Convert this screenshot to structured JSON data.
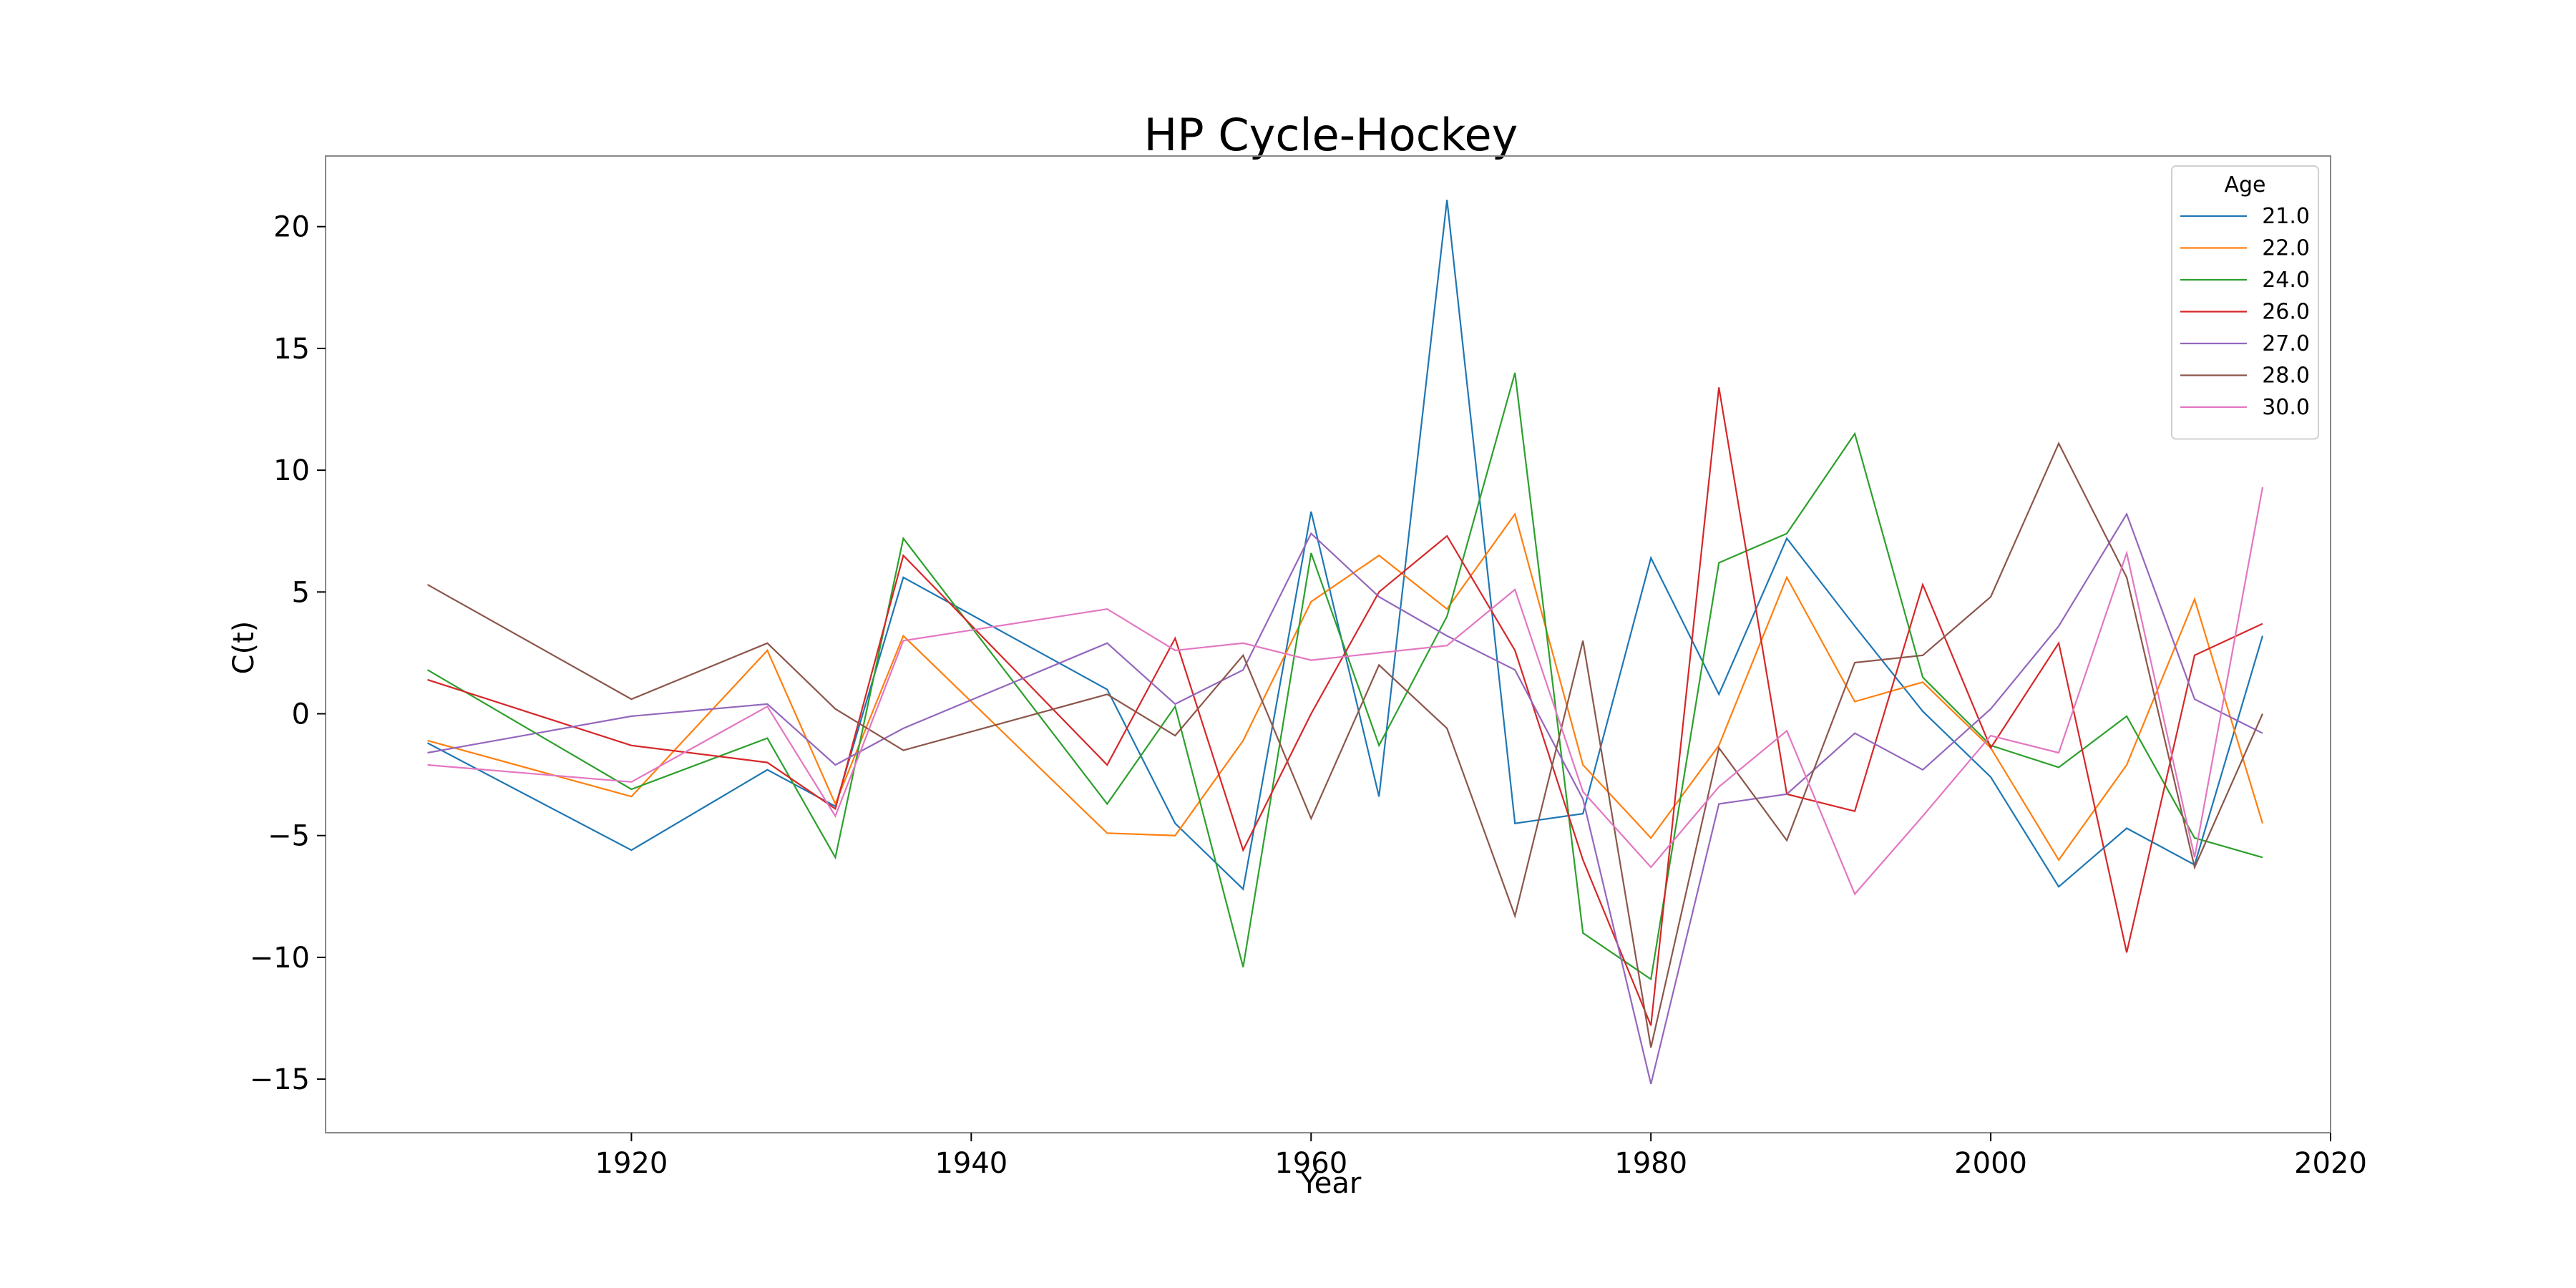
{
  "chart_data": {
    "type": "line",
    "title": "HP Cycle-Hockey",
    "xlabel": "Year",
    "ylabel": "C(t)",
    "xlim": [
      1902,
      2020
    ],
    "ylim": [
      -17.2,
      22.9
    ],
    "xticks": [
      1920,
      1940,
      1960,
      1980,
      2000,
      2020
    ],
    "yticks": [
      -15,
      -10,
      -5,
      0,
      5,
      10,
      15,
      20
    ],
    "grid": false,
    "legend": {
      "title": "Age",
      "position": "top-right"
    },
    "x": [
      1908,
      1920,
      1928,
      1932,
      1936,
      1948,
      1952,
      1956,
      1960,
      1964,
      1968,
      1972,
      1976,
      1980,
      1984,
      1988,
      1992,
      1996,
      2000,
      2004,
      2008,
      2012,
      2016
    ],
    "series": [
      {
        "name": "21.0",
        "color": "#1f77b4",
        "values": [
          -1.2,
          -5.6,
          -2.3,
          -3.8,
          5.6,
          1.0,
          -4.5,
          -7.2,
          8.3,
          -3.4,
          21.1,
          -4.5,
          -4.1,
          6.4,
          0.8,
          7.2,
          3.6,
          0.1,
          -2.6,
          -7.1,
          -4.7,
          -6.2,
          3.2
        ]
      },
      {
        "name": "22.0",
        "color": "#ff7f0e",
        "values": [
          -1.1,
          -3.4,
          2.6,
          -3.7,
          3.2,
          -4.9,
          -5.0,
          -1.1,
          4.6,
          6.5,
          4.3,
          8.2,
          -2.1,
          -5.1,
          -1.3,
          5.6,
          0.5,
          1.3,
          -1.4,
          -6.0,
          -2.1,
          4.7,
          -4.5
        ]
      },
      {
        "name": "24.0",
        "color": "#2ca02c",
        "values": [
          1.8,
          -3.1,
          -1.0,
          -5.9,
          7.2,
          -3.7,
          0.3,
          -10.4,
          6.6,
          -1.3,
          4.0,
          14.0,
          -9.0,
          -10.9,
          6.2,
          7.4,
          11.5,
          1.5,
          -1.3,
          -2.2,
          -0.1,
          -5.1,
          -5.9
        ]
      },
      {
        "name": "26.0",
        "color": "#d62728",
        "values": [
          1.4,
          -1.3,
          -2.0,
          -3.9,
          6.5,
          -2.1,
          3.1,
          -5.6,
          0.0,
          5.0,
          7.3,
          2.6,
          -6.0,
          -12.8,
          13.4,
          -3.3,
          -4.0,
          5.3,
          -1.4,
          2.9,
          -9.8,
          2.4,
          3.7
        ]
      },
      {
        "name": "27.0",
        "color": "#9467bd",
        "values": [
          -1.6,
          -0.1,
          0.4,
          -2.1,
          -0.6,
          2.9,
          0.4,
          1.8,
          7.4,
          4.8,
          3.2,
          1.8,
          -3.5,
          -15.2,
          -3.7,
          -3.3,
          -0.8,
          -2.3,
          0.2,
          3.6,
          8.2,
          0.6,
          -0.8
        ]
      },
      {
        "name": "28.0",
        "color": "#8c564b",
        "values": [
          5.3,
          0.6,
          2.9,
          0.2,
          -1.5,
          0.8,
          -0.9,
          2.4,
          -4.3,
          2.0,
          -0.6,
          -8.3,
          3.0,
          -13.7,
          -1.4,
          -5.2,
          2.1,
          2.4,
          4.8,
          11.1,
          5.6,
          -6.3,
          0.0
        ]
      },
      {
        "name": "30.0",
        "color": "#e377c2",
        "values": [
          -2.1,
          -2.8,
          0.3,
          -4.2,
          3.0,
          4.3,
          2.6,
          2.9,
          2.2,
          2.5,
          2.8,
          5.1,
          -3.2,
          -6.3,
          -3.0,
          -0.7,
          -7.4,
          -4.2,
          -0.9,
          -1.6,
          6.6,
          -5.9,
          9.3
        ]
      }
    ]
  }
}
